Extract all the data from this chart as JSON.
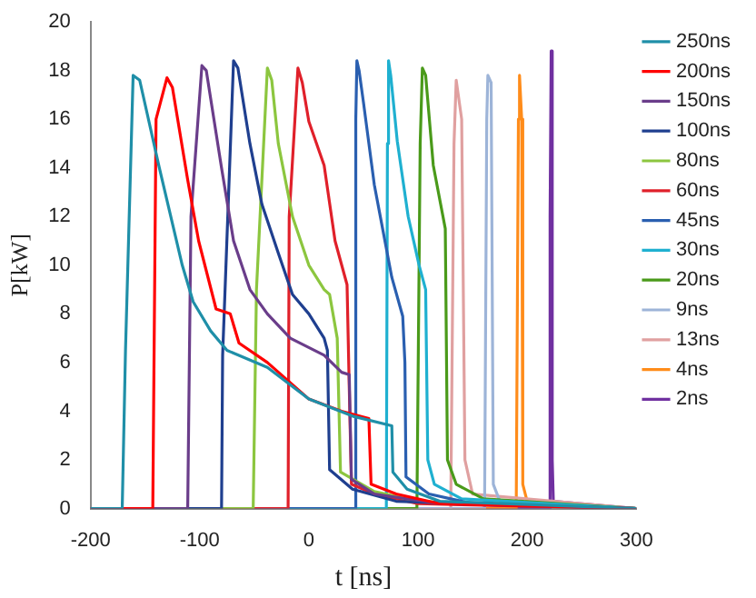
{
  "chart_data": {
    "type": "line",
    "xlabel": "t [ns]",
    "ylabel": "P[kW]",
    "xlim": [
      -200,
      300
    ],
    "ylim": [
      0,
      20
    ],
    "xticks": [
      -200,
      -100,
      0,
      100,
      200,
      300
    ],
    "yticks": [
      0,
      2,
      4,
      6,
      8,
      10,
      12,
      14,
      16,
      18,
      20
    ],
    "grid": false,
    "legend": "right",
    "marker": "none",
    "line_style": "solid",
    "series": [
      {
        "name": "250ns",
        "color": "#1f8fa8",
        "x": [
          -200,
          -171,
          -168,
          -161,
          -155,
          -137,
          -116,
          -106,
          -90,
          -75,
          -38,
          0,
          40,
          76,
          77,
          90,
          120,
          300
        ],
        "values": [
          0,
          0,
          6.5,
          17.8,
          17.6,
          14,
          10,
          8.5,
          7.3,
          6.5,
          5.8,
          4.5,
          3.8,
          3.4,
          1.5,
          0.8,
          0.3,
          0
        ]
      },
      {
        "name": "200ns",
        "color": "#ff0000",
        "x": [
          -200,
          -143,
          -140,
          -130,
          -125,
          -111,
          -101,
          -85,
          -72,
          -64,
          -38,
          0,
          30,
          55,
          57,
          80,
          120,
          300
        ],
        "values": [
          0,
          0,
          16,
          17.7,
          17.3,
          13.5,
          11,
          8.2,
          8,
          6.8,
          6,
          4.5,
          4,
          3.7,
          1,
          0.6,
          0.2,
          0
        ]
      },
      {
        "name": "150ns",
        "color": "#6a3d8a",
        "x": [
          -200,
          -111,
          -108,
          -98,
          -94,
          -80,
          -69,
          -54,
          -38,
          -17,
          14,
          30,
          37,
          39,
          60,
          120,
          300
        ],
        "values": [
          0,
          0,
          12,
          18.2,
          18,
          14,
          11,
          9,
          8,
          7,
          6.3,
          5.6,
          5.5,
          1.2,
          0.6,
          0.2,
          0
        ]
      },
      {
        "name": "100ns",
        "color": "#1f3f8f",
        "x": [
          -200,
          -80,
          -79,
          -69,
          -65,
          -54,
          -43,
          -28,
          -15,
          0,
          14,
          17,
          19,
          40,
          80,
          300
        ],
        "values": [
          0,
          0,
          6.3,
          18.4,
          18.1,
          15,
          12.5,
          10.5,
          8.8,
          8,
          7,
          6.5,
          1.6,
          0.8,
          0.3,
          0
        ]
      },
      {
        "name": "80ns",
        "color": "#8cc63f",
        "x": [
          -200,
          -51,
          -48,
          -38,
          -34,
          -28,
          -15,
          0,
          14,
          19,
          26,
          29,
          60,
          100,
          300
        ],
        "values": [
          0,
          0,
          9,
          18.1,
          17.6,
          15,
          12,
          10,
          9,
          8.8,
          7,
          1.5,
          0.7,
          0.3,
          0
        ]
      },
      {
        "name": "60ns",
        "color": "#e0202a",
        "x": [
          -200,
          -19,
          -18,
          -10,
          -6,
          0,
          14,
          24,
          35,
          37,
          39,
          60,
          100,
          300
        ],
        "values": [
          0,
          0,
          12,
          18.1,
          17.5,
          15.9,
          14.1,
          11,
          9.2,
          5,
          1,
          0.6,
          0.2,
          0
        ]
      },
      {
        "name": "45ns",
        "color": "#2a5fb0",
        "x": [
          -200,
          42,
          43,
          44,
          46,
          50,
          60,
          76,
          86,
          88,
          89,
          110,
          150,
          300
        ],
        "values": [
          0,
          0,
          16,
          18.4,
          18,
          16.7,
          13.3,
          9.5,
          7.9,
          6,
          1.3,
          0.6,
          0.2,
          0
        ]
      },
      {
        "name": "30ns",
        "color": "#1fb0d0",
        "x": [
          -200,
          71,
          72,
          73,
          75,
          81,
          91,
          101,
          107,
          109,
          115,
          140,
          300
        ],
        "values": [
          0,
          0,
          15,
          18.4,
          17.8,
          15.1,
          12,
          10,
          9,
          2,
          1,
          0.4,
          0
        ]
      },
      {
        "name": "20ns",
        "color": "#4a9a1a",
        "x": [
          -200,
          99,
          102,
          104,
          107,
          114,
          125,
          127,
          135,
          160,
          300
        ],
        "values": [
          0,
          0,
          15,
          18.1,
          17.8,
          14.1,
          11.5,
          2,
          1,
          0.4,
          0
        ]
      },
      {
        "name": "9ns",
        "color": "#9db4d8",
        "x": [
          -200,
          161,
          163,
          164,
          167,
          169,
          175,
          300
        ],
        "values": [
          0,
          0,
          16,
          17.8,
          17.5,
          1,
          0.3,
          0
        ]
      },
      {
        "name": "13ns",
        "color": "#e0a0a0",
        "x": [
          -200,
          130,
          133,
          135,
          140,
          143,
          150,
          300
        ],
        "values": [
          0,
          0,
          15,
          17.6,
          16,
          2,
          0.6,
          0
        ]
      },
      {
        "name": "4ns",
        "color": "#ff8c1a",
        "x": [
          -200,
          190,
          192,
          193,
          195,
          196,
          200,
          300
        ],
        "values": [
          0,
          0,
          16,
          17.8,
          16,
          1,
          0.3,
          0
        ]
      },
      {
        "name": "2ns",
        "color": "#7030a0",
        "x": [
          -200,
          220,
          221,
          222,
          223,
          224,
          300
        ],
        "values": [
          0,
          0,
          12,
          18.8,
          2,
          0.3,
          0
        ]
      }
    ]
  }
}
